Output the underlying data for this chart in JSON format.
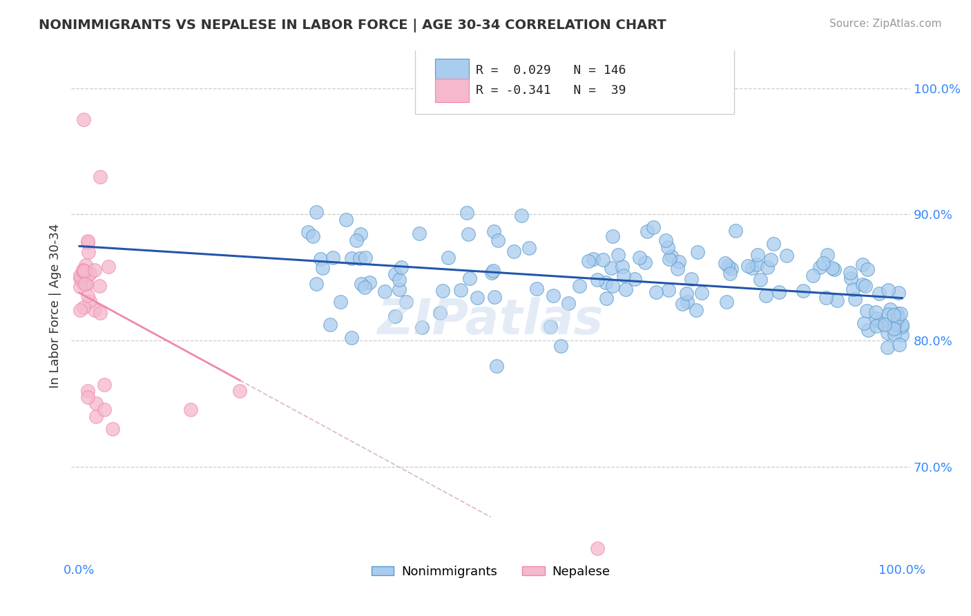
{
  "title": "NONIMMIGRANTS VS NEPALESE IN LABOR FORCE | AGE 30-34 CORRELATION CHART",
  "source": "Source: ZipAtlas.com",
  "ylabel": "In Labor Force | Age 30-34",
  "xlim": [
    -0.01,
    1.01
  ],
  "ylim": [
    0.625,
    1.03
  ],
  "yticks": [
    0.7,
    0.8,
    0.9,
    1.0
  ],
  "ytick_labels": [
    "70.0%",
    "80.0%",
    "90.0%",
    "100.0%"
  ],
  "xtick_labels": [
    "0.0%",
    "100.0%"
  ],
  "blue_R": 0.029,
  "blue_N": 146,
  "pink_R": -0.341,
  "pink_N": 39,
  "blue_color": "#aaccee",
  "blue_edge_color": "#5599cc",
  "pink_color": "#f5b8cc",
  "pink_edge_color": "#ee88aa",
  "blue_line_color": "#2255aa",
  "pink_line_color": "#ee88aa",
  "pink_dash_color": "#ddbbcc",
  "watermark": "ZIPatlas",
  "legend_label_1": "Nonimmigrants",
  "legend_label_2": "Nepalese",
  "figsize": [
    14.06,
    8.92
  ],
  "dpi": 100
}
